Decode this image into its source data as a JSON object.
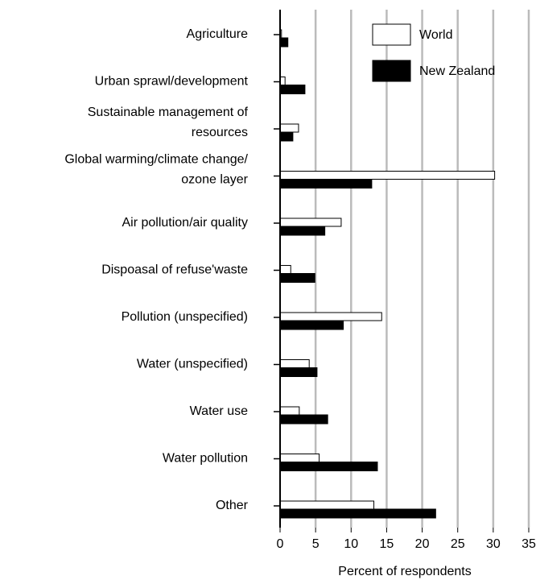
{
  "chart_data": {
    "type": "hbar",
    "x_label": "Percent of respondents",
    "categories": [
      [
        "Agriculture"
      ],
      [
        "Urban sprawl/development"
      ],
      [
        "Sustainable management of",
        "resources"
      ],
      [
        "Global warming/climate change/",
        "ozone layer"
      ],
      [
        "Air pollution/air quality"
      ],
      [
        "Dispoasal of refuse'waste"
      ],
      [
        "Pollution (unspecified)"
      ],
      [
        "Water (unspecified)"
      ],
      [
        "Water use"
      ],
      [
        "Water pollution"
      ],
      [
        "Other"
      ]
    ],
    "series": [
      {
        "name": "World",
        "color": "#ffffff",
        "values": [
          0.2,
          0.7,
          2.6,
          30.2,
          8.6,
          1.5,
          14.3,
          4.1,
          2.7,
          5.5,
          13.2
        ]
      },
      {
        "name": "New Zealand",
        "color": "#000000",
        "values": [
          1.1,
          3.5,
          1.8,
          12.9,
          6.3,
          4.9,
          8.9,
          5.2,
          6.7,
          13.7,
          21.9
        ]
      }
    ],
    "xlim": [
      0,
      35
    ],
    "xticks": [
      0,
      5,
      10,
      15,
      20,
      25,
      30,
      35
    ],
    "grid": true,
    "legend": "top-right"
  }
}
